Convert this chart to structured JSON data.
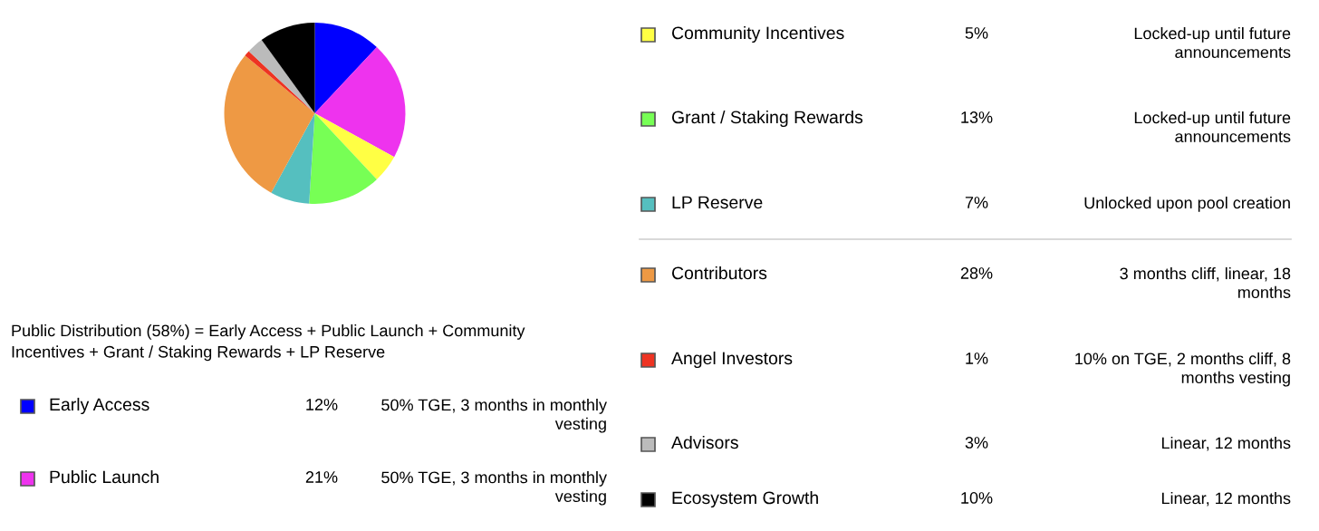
{
  "chart_data": {
    "type": "pie",
    "categories": [
      "Early Access",
      "Public Launch",
      "Community Incentives",
      "Grant / Staking Rewards",
      "LP Reserve",
      "Contributors",
      "Angel Investors",
      "Advisors",
      "Ecosystem Growth"
    ],
    "values": [
      12,
      21,
      5,
      13,
      7,
      28,
      1,
      3,
      10
    ],
    "legend": "right",
    "value_labels": [
      "12%",
      "21%",
      "5%",
      "13%",
      "7%",
      "28%",
      "1%",
      "3%",
      "10%"
    ],
    "colors": [
      "#0000ff",
      "#ee33ee",
      "#ffff44",
      "#77ff55",
      "#55bfbf",
      "#ee9944",
      "#ee3322",
      "#bbbbbb",
      "#000000"
    ],
    "annotations": [
      "Public Distribution (58%) = Early Access + Public Launch + Community Incentives + Grant / Staking Rewards + LP Reserve",
      "50% TGE, 3 months in monthly vesting",
      "50% TGE, 3 months in monthly vesting",
      "Locked-up until future announcements",
      "Locked-up until future announcements",
      "Unlocked upon pool creation",
      "3 months cliff, linear, 18 months",
      "10% on TGE, 2 months cliff, 8 months vesting",
      "Linear, 12 months",
      "Linear, 12 months"
    ]
  }
}
